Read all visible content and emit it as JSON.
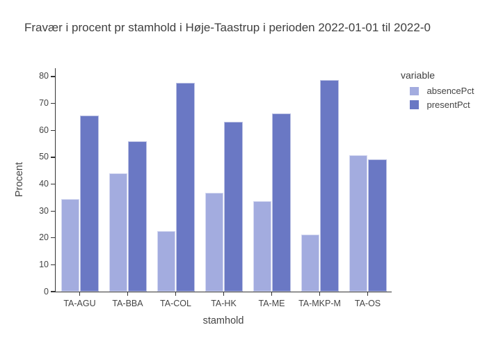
{
  "title": "Fravær i procent pr stamhold i Høje-Taastrup i perioden 2022-01-01 til 2022-0",
  "chart_data": {
    "type": "bar",
    "barmode": "group",
    "title": "Fravær i procent pr stamhold i Høje-Taastrup i perioden 2022-01-01 til 2022-0",
    "xlabel": "stamhold",
    "ylabel": "Procent",
    "legend_title": "variable",
    "legend_position": "right-top",
    "grid": false,
    "categories": [
      "TA-AGU",
      "TA-BBA",
      "TA-COL",
      "TA-HK",
      "TA-ME",
      "TA-MKP-M",
      "TA-OS"
    ],
    "series": [
      {
        "name": "absencePct",
        "color": "#A3ACDF",
        "values": [
          34.4,
          44.0,
          22.4,
          36.8,
          33.7,
          21.2,
          50.8
        ]
      },
      {
        "name": "presentPct",
        "color": "#6A78C4",
        "values": [
          65.6,
          56.0,
          77.6,
          63.2,
          66.3,
          78.8,
          49.2
        ]
      }
    ],
    "ylim": [
      0,
      80
    ],
    "ytick_step": 10,
    "yticks": [
      "0",
      "10",
      "20",
      "30",
      "40",
      "50",
      "60",
      "70",
      "80"
    ]
  },
  "colors": {
    "background": "#ffffff",
    "axis_line": "#333333",
    "tick_label": "#444444",
    "title_text": "#3f3f3f",
    "absence_bar": "#A3ACDF",
    "present_bar": "#6A78C4"
  }
}
